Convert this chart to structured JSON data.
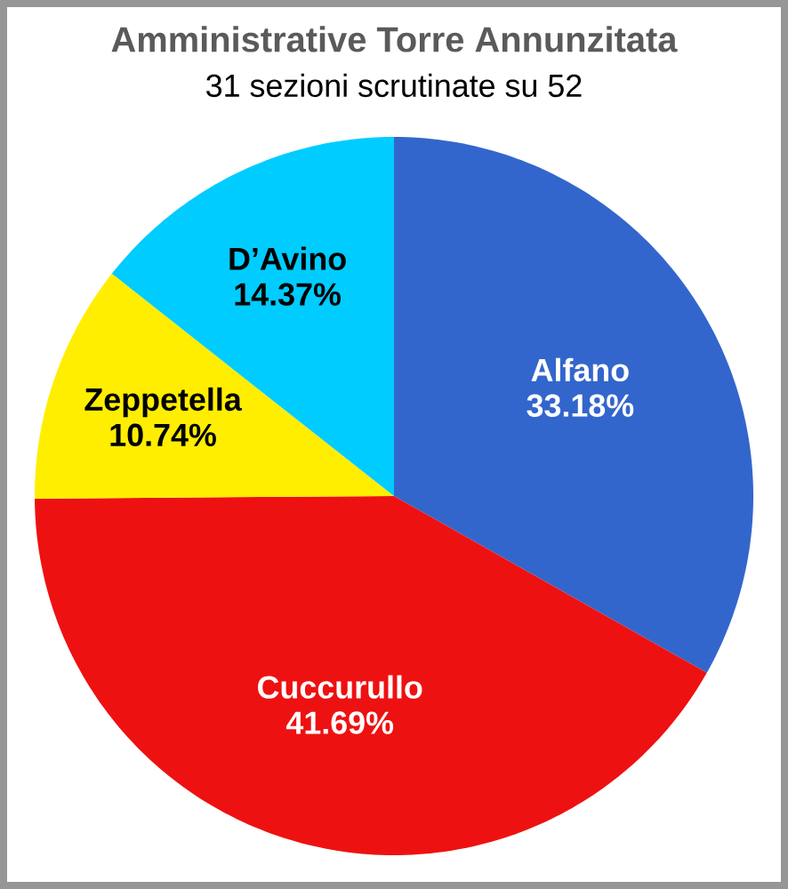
{
  "chart_data": {
    "type": "pie",
    "title": "Amministrative Torre Annunzitata",
    "subtitle": "31 sezioni scrutinate su 52",
    "categories": [
      "Alfano",
      "Cuccurullo",
      "Zeppetella",
      "D’Avino"
    ],
    "values": [
      33.18,
      41.69,
      10.74,
      14.37
    ],
    "colors": [
      "#3366cc",
      "#ee1111",
      "#ffee00",
      "#00ccff"
    ],
    "value_labels": [
      "33.18%",
      "41.69%",
      "10.74%",
      "14.37%"
    ]
  }
}
